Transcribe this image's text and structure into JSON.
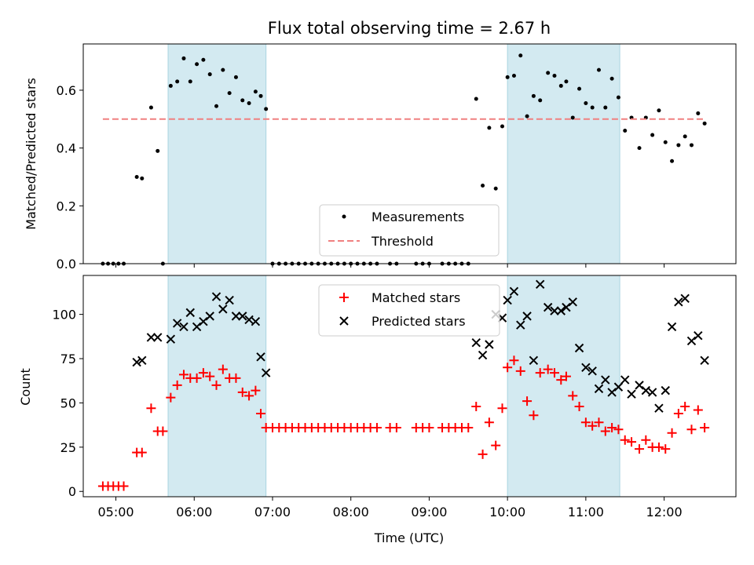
{
  "figure": {
    "title": "Flux total observing time = 2.67 h",
    "xlabel": "Time (UTC)"
  },
  "chart_data": [
    {
      "type": "scatter",
      "ylabel": "Matched/Predicted stars",
      "xlim": [
        "04:35",
        "12:55"
      ],
      "ylim": [
        0,
        0.76
      ],
      "yticks": [
        "0.0",
        "0.2",
        "0.4",
        "0.6"
      ],
      "grid": false,
      "legend": "bottom-center",
      "shaded_intervals": [
        [
          "05:40",
          "06:55"
        ],
        [
          "10:00",
          "11:26"
        ]
      ],
      "shade_color": "#d3eaf1",
      "series": [
        {
          "name": "Measurements",
          "marker": "dot",
          "color": "#000000",
          "points": [
            [
              "04:50",
              0
            ],
            [
              "04:54",
              0
            ],
            [
              "04:58",
              0
            ],
            [
              "05:02",
              0
            ],
            [
              "05:06",
              0
            ],
            [
              "05:16",
              0.3
            ],
            [
              "05:20",
              0.295
            ],
            [
              "05:27",
              0.54
            ],
            [
              "05:32",
              0.39
            ],
            [
              "05:36",
              0
            ],
            [
              "05:42",
              0.615
            ],
            [
              "05:47",
              0.63
            ],
            [
              "05:52",
              0.71
            ],
            [
              "05:57",
              0.63
            ],
            [
              "06:02",
              0.69
            ],
            [
              "06:07",
              0.705
            ],
            [
              "06:12",
              0.655
            ],
            [
              "06:17",
              0.545
            ],
            [
              "06:22",
              0.67
            ],
            [
              "06:27",
              0.59
            ],
            [
              "06:32",
              0.645
            ],
            [
              "06:37",
              0.565
            ],
            [
              "06:42",
              0.555
            ],
            [
              "06:47",
              0.595
            ],
            [
              "06:51",
              0.58
            ],
            [
              "06:55",
              0.535
            ],
            [
              "07:00",
              0
            ],
            [
              "07:05",
              0
            ],
            [
              "07:10",
              0
            ],
            [
              "07:15",
              0
            ],
            [
              "07:20",
              0
            ],
            [
              "07:25",
              0
            ],
            [
              "07:30",
              0
            ],
            [
              "07:35",
              0
            ],
            [
              "07:40",
              0
            ],
            [
              "07:45",
              0
            ],
            [
              "07:50",
              0
            ],
            [
              "07:55",
              0
            ],
            [
              "08:00",
              0
            ],
            [
              "08:05",
              0
            ],
            [
              "08:10",
              0
            ],
            [
              "08:15",
              0
            ],
            [
              "08:20",
              0
            ],
            [
              "08:30",
              0
            ],
            [
              "08:35",
              0
            ],
            [
              "08:50",
              0
            ],
            [
              "08:55",
              0
            ],
            [
              "09:00",
              0
            ],
            [
              "09:10",
              0
            ],
            [
              "09:15",
              0
            ],
            [
              "09:20",
              0
            ],
            [
              "09:25",
              0
            ],
            [
              "09:30",
              0
            ],
            [
              "09:36",
              0.57
            ],
            [
              "09:41",
              0.27
            ],
            [
              "09:46",
              0.47
            ],
            [
              "09:51",
              0.26
            ],
            [
              "09:56",
              0.475
            ],
            [
              "10:00",
              0.645
            ],
            [
              "10:05",
              0.65
            ],
            [
              "10:10",
              0.72
            ],
            [
              "10:15",
              0.51
            ],
            [
              "10:20",
              0.58
            ],
            [
              "10:25",
              0.565
            ],
            [
              "10:31",
              0.66
            ],
            [
              "10:36",
              0.65
            ],
            [
              "10:41",
              0.615
            ],
            [
              "10:45",
              0.63
            ],
            [
              "10:50",
              0.505
            ],
            [
              "10:55",
              0.605
            ],
            [
              "11:00",
              0.555
            ],
            [
              "11:05",
              0.54
            ],
            [
              "11:10",
              0.67
            ],
            [
              "11:15",
              0.54
            ],
            [
              "11:20",
              0.64
            ],
            [
              "11:25",
              0.575
            ],
            [
              "11:30",
              0.46
            ],
            [
              "11:35",
              0.505
            ],
            [
              "11:41",
              0.4
            ],
            [
              "11:46",
              0.505
            ],
            [
              "11:51",
              0.445
            ],
            [
              "11:56",
              0.53
            ],
            [
              "12:01",
              0.42
            ],
            [
              "12:06",
              0.355
            ],
            [
              "12:11",
              0.41
            ],
            [
              "12:16",
              0.44
            ],
            [
              "12:21",
              0.41
            ],
            [
              "12:26",
              0.52
            ],
            [
              "12:31",
              0.485
            ]
          ]
        },
        {
          "name": "Threshold",
          "marker": "dashed-line",
          "color": "#f08080",
          "points": [
            [
              "04:50",
              0.5
            ],
            [
              "12:31",
              0.5
            ]
          ]
        }
      ]
    },
    {
      "type": "scatter",
      "ylabel": "Count",
      "xlim": [
        "04:35",
        "12:55"
      ],
      "ylim": [
        -3,
        122
      ],
      "yticks": [
        "0",
        "25",
        "50",
        "75",
        "100"
      ],
      "xticks": [
        "05:00",
        "06:00",
        "07:00",
        "08:00",
        "09:00",
        "10:00",
        "11:00",
        "12:00"
      ],
      "grid": false,
      "legend": "top-center",
      "shaded_intervals": [
        [
          "05:40",
          "06:55"
        ],
        [
          "10:00",
          "11:26"
        ]
      ],
      "shade_color": "#d3eaf1",
      "series": [
        {
          "name": "Matched stars",
          "marker": "plus",
          "color": "#ff0000",
          "points": [
            [
              "04:50",
              3
            ],
            [
              "04:54",
              3
            ],
            [
              "04:58",
              3
            ],
            [
              "05:02",
              3
            ],
            [
              "05:06",
              3
            ],
            [
              "05:16",
              22
            ],
            [
              "05:20",
              22
            ],
            [
              "05:27",
              47
            ],
            [
              "05:32",
              34
            ],
            [
              "05:36",
              34
            ],
            [
              "05:42",
              53
            ],
            [
              "05:47",
              60
            ],
            [
              "05:52",
              66
            ],
            [
              "05:57",
              64
            ],
            [
              "06:02",
              64
            ],
            [
              "06:07",
              67
            ],
            [
              "06:12",
              65
            ],
            [
              "06:17",
              60
            ],
            [
              "06:22",
              69
            ],
            [
              "06:27",
              64
            ],
            [
              "06:32",
              64
            ],
            [
              "06:37",
              56
            ],
            [
              "06:42",
              54
            ],
            [
              "06:47",
              57
            ],
            [
              "06:51",
              44
            ],
            [
              "06:55",
              36
            ],
            [
              "07:00",
              36
            ],
            [
              "07:05",
              36
            ],
            [
              "07:10",
              36
            ],
            [
              "07:15",
              36
            ],
            [
              "07:20",
              36
            ],
            [
              "07:25",
              36
            ],
            [
              "07:30",
              36
            ],
            [
              "07:35",
              36
            ],
            [
              "07:40",
              36
            ],
            [
              "07:45",
              36
            ],
            [
              "07:50",
              36
            ],
            [
              "07:55",
              36
            ],
            [
              "08:00",
              36
            ],
            [
              "08:05",
              36
            ],
            [
              "08:10",
              36
            ],
            [
              "08:15",
              36
            ],
            [
              "08:20",
              36
            ],
            [
              "08:30",
              36
            ],
            [
              "08:35",
              36
            ],
            [
              "08:50",
              36
            ],
            [
              "08:55",
              36
            ],
            [
              "09:00",
              36
            ],
            [
              "09:10",
              36
            ],
            [
              "09:15",
              36
            ],
            [
              "09:20",
              36
            ],
            [
              "09:25",
              36
            ],
            [
              "09:30",
              36
            ],
            [
              "09:36",
              48
            ],
            [
              "09:41",
              21
            ],
            [
              "09:46",
              39
            ],
            [
              "09:51",
              26
            ],
            [
              "09:56",
              47
            ],
            [
              "10:00",
              70
            ],
            [
              "10:05",
              74
            ],
            [
              "10:10",
              68
            ],
            [
              "10:15",
              51
            ],
            [
              "10:20",
              43
            ],
            [
              "10:25",
              67
            ],
            [
              "10:31",
              69
            ],
            [
              "10:36",
              67
            ],
            [
              "10:41",
              63
            ],
            [
              "10:45",
              65
            ],
            [
              "10:50",
              54
            ],
            [
              "10:55",
              48
            ],
            [
              "11:00",
              39
            ],
            [
              "11:05",
              37
            ],
            [
              "11:10",
              39
            ],
            [
              "11:15",
              34
            ],
            [
              "11:20",
              36
            ],
            [
              "11:25",
              35
            ],
            [
              "11:30",
              29
            ],
            [
              "11:35",
              28
            ],
            [
              "11:41",
              24
            ],
            [
              "11:46",
              29
            ],
            [
              "11:51",
              25
            ],
            [
              "11:56",
              25
            ],
            [
              "12:01",
              24
            ],
            [
              "12:06",
              33
            ],
            [
              "12:11",
              44
            ],
            [
              "12:16",
              48
            ],
            [
              "12:21",
              35
            ],
            [
              "12:26",
              46
            ],
            [
              "12:31",
              36
            ]
          ]
        },
        {
          "name": "Predicted stars",
          "marker": "x",
          "color": "#000000",
          "points": [
            [
              "05:16",
              73
            ],
            [
              "05:20",
              74
            ],
            [
              "05:27",
              87
            ],
            [
              "05:32",
              87
            ],
            [
              "05:42",
              86
            ],
            [
              "05:47",
              95
            ],
            [
              "05:52",
              93
            ],
            [
              "05:57",
              101
            ],
            [
              "06:02",
              93
            ],
            [
              "06:07",
              96
            ],
            [
              "06:12",
              99
            ],
            [
              "06:17",
              110
            ],
            [
              "06:22",
              103
            ],
            [
              "06:27",
              108
            ],
            [
              "06:32",
              99
            ],
            [
              "06:37",
              99
            ],
            [
              "06:42",
              97
            ],
            [
              "06:47",
              96
            ],
            [
              "06:51",
              76
            ],
            [
              "06:55",
              67
            ],
            [
              "09:36",
              84
            ],
            [
              "09:41",
              77
            ],
            [
              "09:46",
              83
            ],
            [
              "09:51",
              100
            ],
            [
              "09:56",
              98
            ],
            [
              "10:00",
              108
            ],
            [
              "10:05",
              113
            ],
            [
              "10:10",
              94
            ],
            [
              "10:15",
              99
            ],
            [
              "10:20",
              74
            ],
            [
              "10:25",
              117
            ],
            [
              "10:31",
              104
            ],
            [
              "10:36",
              102
            ],
            [
              "10:41",
              102
            ],
            [
              "10:45",
              104
            ],
            [
              "10:50",
              107
            ],
            [
              "10:55",
              81
            ],
            [
              "11:00",
              70
            ],
            [
              "11:05",
              68
            ],
            [
              "11:10",
              58
            ],
            [
              "11:15",
              63
            ],
            [
              "11:20",
              56
            ],
            [
              "11:25",
              59
            ],
            [
              "11:30",
              63
            ],
            [
              "11:35",
              55
            ],
            [
              "11:41",
              60
            ],
            [
              "11:46",
              57
            ],
            [
              "11:51",
              56
            ],
            [
              "11:56",
              47
            ],
            [
              "12:01",
              57
            ],
            [
              "12:06",
              93
            ],
            [
              "12:11",
              107
            ],
            [
              "12:16",
              109
            ],
            [
              "12:21",
              85
            ],
            [
              "12:26",
              88
            ],
            [
              "12:31",
              74
            ]
          ]
        }
      ]
    }
  ]
}
